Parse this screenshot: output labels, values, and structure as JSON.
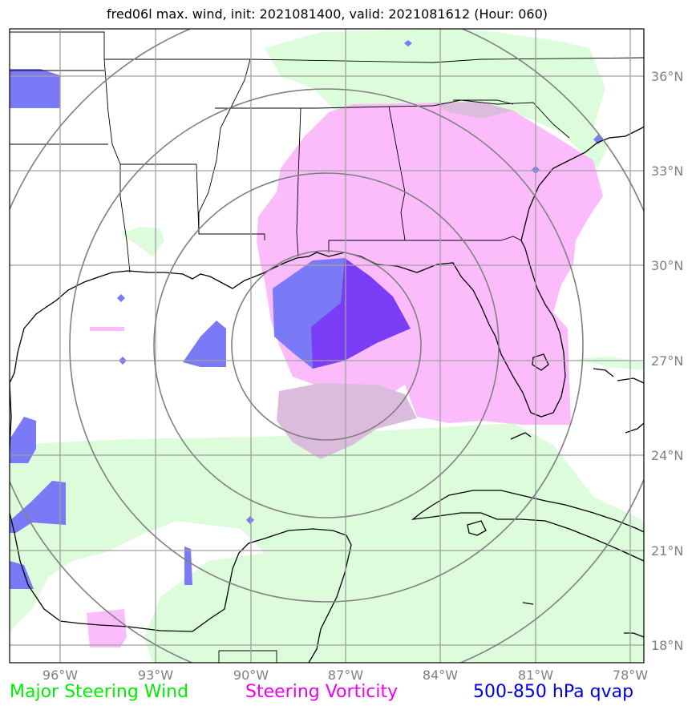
{
  "title": "fred06l max. wind, init: 2021081400, valid: 2021081612 (Hour: 060)",
  "lat_labels": [
    "36°N",
    "33°N",
    "30°N",
    "27°N",
    "24°N",
    "21°N",
    "18°N"
  ],
  "lon_labels": [
    "96°W",
    "93°W",
    "90°W",
    "87°W",
    "84°W",
    "81°W",
    "78°W"
  ],
  "legend": {
    "wind": {
      "label": "Major Steering Wind",
      "color": "#00ee00"
    },
    "vorticity": {
      "label": "Steering Vorticity",
      "color": "#ee00ee"
    },
    "qvap": {
      "label": "500-850 hPa qvap",
      "color": "#0000dd"
    }
  },
  "colors": {
    "wind_fill": "#dcfcdc",
    "vorticity_fill": "#fcbcfc",
    "qvap_fill": "#7a7af6",
    "qvap_dark": "#7a3cf4",
    "overlap_fill": "#dcbcdc",
    "grid": "#a0a0a0",
    "range_rings": "#808080",
    "coast": "#000000"
  }
}
